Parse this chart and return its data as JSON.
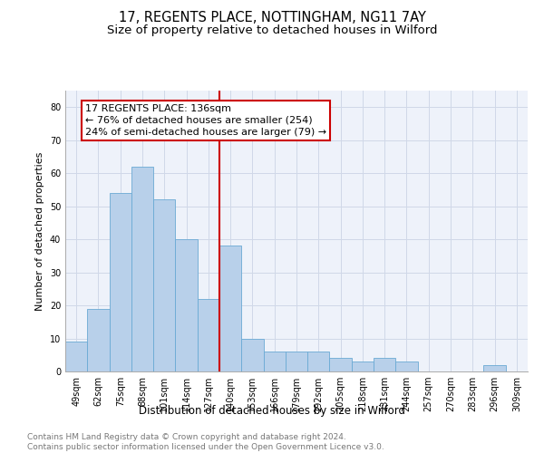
{
  "title1": "17, REGENTS PLACE, NOTTINGHAM, NG11 7AY",
  "title2": "Size of property relative to detached houses in Wilford",
  "xlabel": "Distribution of detached houses by size in Wilford",
  "ylabel": "Number of detached properties",
  "bin_labels": [
    "49sqm",
    "62sqm",
    "75sqm",
    "88sqm",
    "101sqm",
    "114sqm",
    "127sqm",
    "140sqm",
    "153sqm",
    "166sqm",
    "179sqm",
    "192sqm",
    "205sqm",
    "218sqm",
    "231sqm",
    "244sqm",
    "257sqm",
    "270sqm",
    "283sqm",
    "296sqm",
    "309sqm"
  ],
  "bar_values": [
    9,
    19,
    54,
    62,
    52,
    40,
    22,
    38,
    10,
    6,
    6,
    6,
    4,
    3,
    4,
    3,
    0,
    0,
    0,
    2,
    0
  ],
  "bar_color": "#b8d0ea",
  "bar_edge_color": "#6aaad4",
  "vline_color": "#cc0000",
  "annotation_text": "17 REGENTS PLACE: 136sqm\n← 76% of detached houses are smaller (254)\n24% of semi-detached houses are larger (79) →",
  "annotation_box_edgecolor": "#cc0000",
  "ylim": [
    0,
    85
  ],
  "yticks": [
    0,
    10,
    20,
    30,
    40,
    50,
    60,
    70,
    80
  ],
  "grid_color": "#d0d8e8",
  "background_color": "#eef2fa",
  "footer_text": "Contains HM Land Registry data © Crown copyright and database right 2024.\nContains public sector information licensed under the Open Government Licence v3.0.",
  "title1_fontsize": 10.5,
  "title2_fontsize": 9.5,
  "xlabel_fontsize": 8.5,
  "ylabel_fontsize": 8,
  "tick_fontsize": 7,
  "annotation_fontsize": 8,
  "footer_fontsize": 6.5
}
